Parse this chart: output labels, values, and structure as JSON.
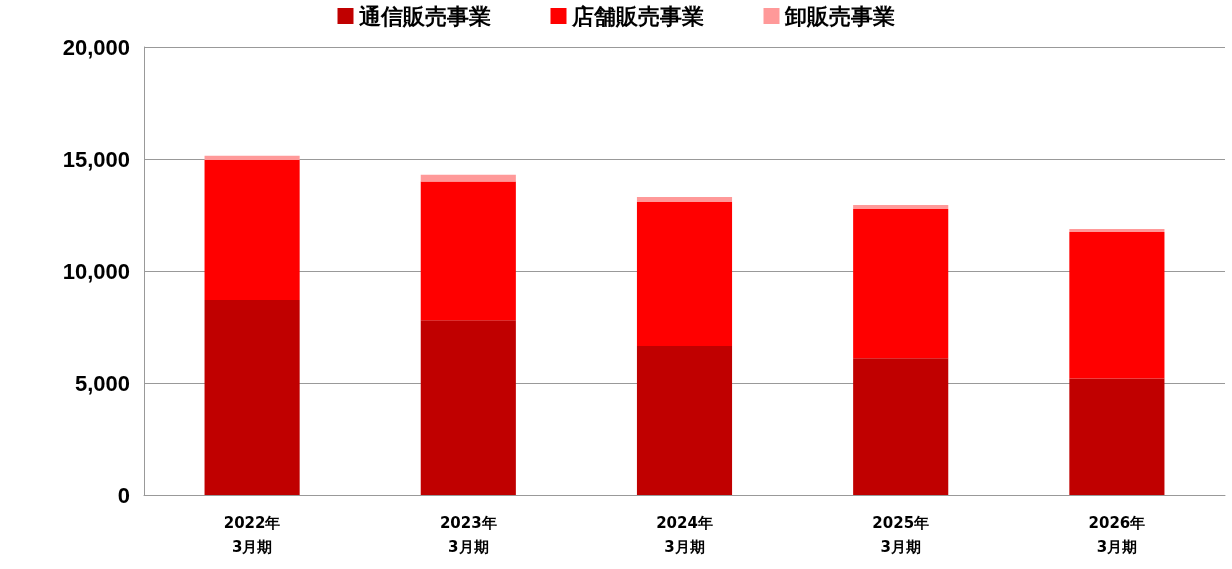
{
  "chart_data": {
    "type": "bar",
    "stacked": true,
    "categories": [
      "2022年\n3月期",
      "2023年\n3月期",
      "2024年\n3月期",
      "2025年\n3月期",
      "2026年\n3月期"
    ],
    "series": [
      {
        "name": "通信販売事業",
        "color": "#c00000",
        "values": [
          8700,
          7800,
          6650,
          6100,
          5200
        ]
      },
      {
        "name": "店舗販売事業",
        "color": "#ff0000",
        "values": [
          6250,
          6200,
          6430,
          6670,
          6540
        ]
      },
      {
        "name": "卸販売事業",
        "color": "#ff9999",
        "values": [
          200,
          300,
          220,
          180,
          140
        ]
      }
    ],
    "ylim": [
      0,
      20000
    ],
    "yticks": [
      0,
      {
        "value": 5000,
        "label": "5,000"
      },
      {
        "value": 10000,
        "label": "10,000"
      },
      {
        "value": 15000,
        "label": "15,000"
      },
      {
        "value": 20000,
        "label": "20,000"
      }
    ],
    "grid": "y",
    "legend": "top"
  }
}
